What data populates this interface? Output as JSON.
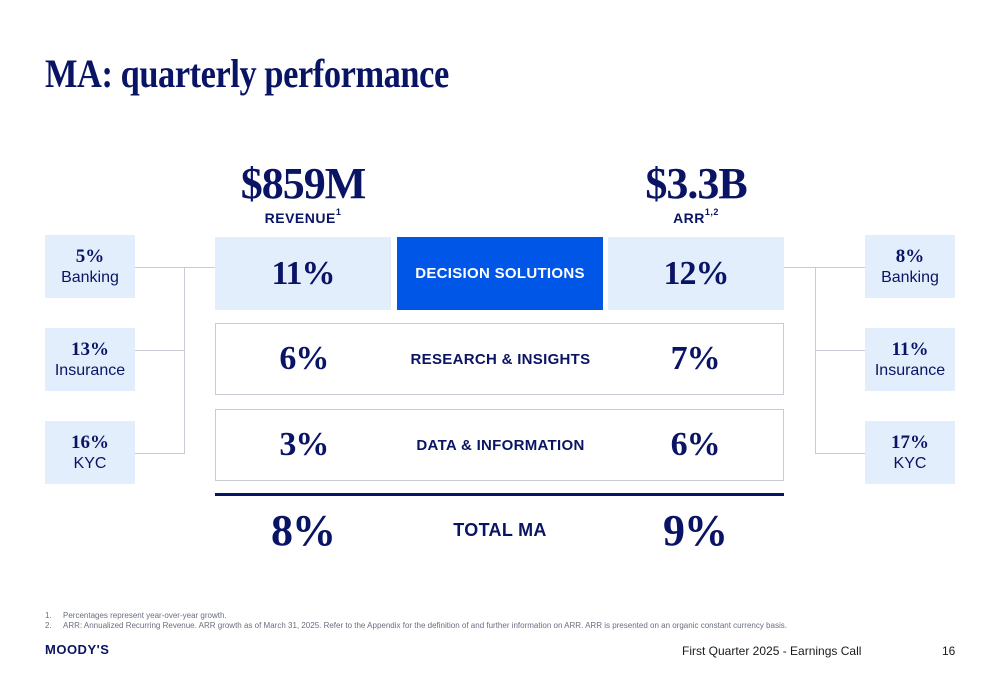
{
  "title": "MA: quarterly performance",
  "revenue": {
    "value": "$859M",
    "label": "REVENUE",
    "sup": "1"
  },
  "arr": {
    "value": "$3.3B",
    "label": "ARR",
    "sup": "1,2"
  },
  "left_subsegments": [
    {
      "pct": "5%",
      "name": "Banking"
    },
    {
      "pct": "13%",
      "name": "Insurance"
    },
    {
      "pct": "16%",
      "name": "KYC"
    }
  ],
  "right_subsegments": [
    {
      "pct": "8%",
      "name": "Banking"
    },
    {
      "pct": "11%",
      "name": "Insurance"
    },
    {
      "pct": "17%",
      "name": "KYC"
    }
  ],
  "segments": [
    {
      "label": "DECISION SOLUTIONS",
      "revenue_growth": "11%",
      "arr_growth": "12%"
    },
    {
      "label": "RESEARCH & INSIGHTS",
      "revenue_growth": "6%",
      "arr_growth": "7%"
    },
    {
      "label": "DATA & INFORMATION",
      "revenue_growth": "3%",
      "arr_growth": "6%"
    }
  ],
  "total": {
    "label": "TOTAL MA",
    "revenue_growth": "8%",
    "arr_growth": "9%"
  },
  "footnotes": [
    {
      "num": "1.",
      "text": "Percentages represent year-over-year growth."
    },
    {
      "num": "2.",
      "text": "ARR: Annualized Recurring Revenue. ARR growth as of March 31, 2025. Refer to the Appendix for the definition of and further information on ARR. ARR is presented on an organic constant currency basis."
    }
  ],
  "footer": {
    "logo": "MOODY'S",
    "event": "First Quarter 2025 - Earnings Call",
    "page": "16"
  },
  "colors": {
    "navy": "#0a1464",
    "accent_blue": "#0057e7",
    "light_blue": "#e3eefc"
  }
}
